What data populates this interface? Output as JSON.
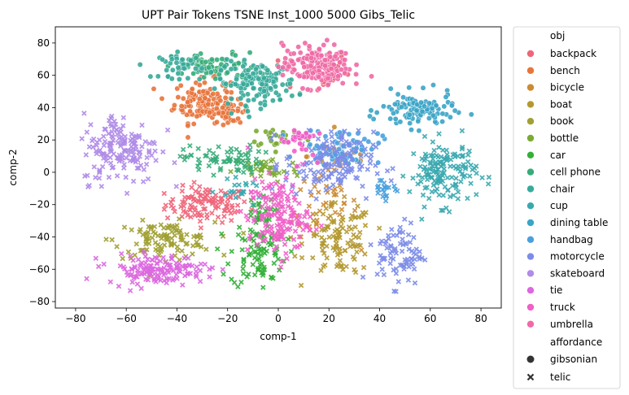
{
  "chart_data": {
    "type": "scatter",
    "title": "UPT Pair Tokens TSNE Inst_1000 5000 Gibs_Telic",
    "xlabel": "comp-1",
    "ylabel": "comp-2",
    "xlim": [
      -88,
      88
    ],
    "ylim": [
      -84,
      90
    ],
    "xticks": [
      "−80",
      "−60",
      "−40",
      "−20",
      "0",
      "20",
      "40",
      "60",
      "80"
    ],
    "xtick_values": [
      -80,
      -60,
      -40,
      -20,
      0,
      20,
      40,
      60,
      80
    ],
    "yticks": [
      "−80",
      "−60",
      "−40",
      "−20",
      "0",
      "20",
      "40",
      "60",
      "80"
    ],
    "ytick_values": [
      -80,
      -60,
      -40,
      -20,
      0,
      20,
      40,
      60,
      80
    ],
    "grid": false,
    "legend_position": "outside-right",
    "legend": {
      "hue_title": "obj",
      "style_title": "affordance",
      "styles": [
        {
          "name": "gibsonian",
          "marker": "circle"
        },
        {
          "name": "telic",
          "marker": "x"
        }
      ]
    },
    "series": [
      {
        "name": "backpack",
        "color": "#f0657a",
        "clusters": [
          {
            "cx": -28,
            "cy": -20,
            "rx": 15,
            "ry": 10,
            "n": 110,
            "marker": "x"
          },
          {
            "cx": 15,
            "cy": 62,
            "rx": 12,
            "ry": 12,
            "n": 30,
            "marker": "circle"
          }
        ]
      },
      {
        "name": "bench",
        "color": "#e8743b",
        "clusters": [
          {
            "cx": -30,
            "cy": 44,
            "rx": 10,
            "ry": 12,
            "n": 130,
            "marker": "circle"
          },
          {
            "cx": -20,
            "cy": 38,
            "rx": 8,
            "ry": 6,
            "n": 40,
            "marker": "circle"
          }
        ]
      },
      {
        "name": "bicycle",
        "color": "#cc8b32",
        "clusters": [
          {
            "cx": 18,
            "cy": -20,
            "rx": 12,
            "ry": 20,
            "n": 40,
            "marker": "x"
          },
          {
            "cx": 25,
            "cy": 10,
            "rx": 12,
            "ry": 10,
            "n": 25,
            "marker": "circle"
          }
        ]
      },
      {
        "name": "boat",
        "color": "#b4992f",
        "clusters": [
          {
            "cx": 24,
            "cy": -42,
            "rx": 12,
            "ry": 20,
            "n": 110,
            "marker": "x"
          }
        ]
      },
      {
        "name": "book",
        "color": "#a0a033",
        "clusters": [
          {
            "cx": -45,
            "cy": -42,
            "rx": 18,
            "ry": 10,
            "n": 110,
            "marker": "x"
          }
        ]
      },
      {
        "name": "bottle",
        "color": "#7bab32",
        "clusters": [
          {
            "cx": -5,
            "cy": 2,
            "rx": 12,
            "ry": 8,
            "n": 40,
            "marker": "x"
          },
          {
            "cx": 0,
            "cy": 22,
            "rx": 10,
            "ry": 6,
            "n": 25,
            "marker": "circle"
          }
        ]
      },
      {
        "name": "car",
        "color": "#33b038",
        "clusters": [
          {
            "cx": -8,
            "cy": -50,
            "rx": 10,
            "ry": 20,
            "n": 90,
            "marker": "x"
          },
          {
            "cx": -8,
            "cy": -25,
            "rx": 6,
            "ry": 8,
            "n": 25,
            "marker": "x"
          }
        ]
      },
      {
        "name": "cell phone",
        "color": "#36ad79",
        "clusters": [
          {
            "cx": -22,
            "cy": 8,
            "rx": 14,
            "ry": 8,
            "n": 70,
            "marker": "x"
          },
          {
            "cx": -25,
            "cy": 65,
            "rx": 15,
            "ry": 8,
            "n": 80,
            "marker": "circle"
          }
        ]
      },
      {
        "name": "chair",
        "color": "#37aa9a",
        "clusters": [
          {
            "cx": -8,
            "cy": 55,
            "rx": 14,
            "ry": 12,
            "n": 140,
            "marker": "circle"
          },
          {
            "cx": -38,
            "cy": 66,
            "rx": 8,
            "ry": 7,
            "n": 40,
            "marker": "circle"
          }
        ]
      },
      {
        "name": "cup",
        "color": "#39a9b0",
        "clusters": [
          {
            "cx": 65,
            "cy": 0,
            "rx": 12,
            "ry": 18,
            "n": 150,
            "marker": "x"
          },
          {
            "cx": -15,
            "cy": -12,
            "rx": 8,
            "ry": 6,
            "n": 20,
            "marker": "x"
          }
        ]
      },
      {
        "name": "dining table",
        "color": "#3aa5c7",
        "clusters": [
          {
            "cx": 55,
            "cy": 38,
            "rx": 13,
            "ry": 10,
            "n": 110,
            "marker": "circle"
          }
        ]
      },
      {
        "name": "handbag",
        "color": "#4aa0de",
        "clusters": [
          {
            "cx": 25,
            "cy": 16,
            "rx": 14,
            "ry": 10,
            "n": 70,
            "marker": "circle"
          },
          {
            "cx": 42,
            "cy": -10,
            "rx": 6,
            "ry": 6,
            "n": 20,
            "marker": "x"
          }
        ]
      },
      {
        "name": "motorcycle",
        "color": "#7d8ce8",
        "clusters": [
          {
            "cx": 20,
            "cy": 5,
            "rx": 16,
            "ry": 18,
            "n": 150,
            "marker": "x"
          },
          {
            "cx": 48,
            "cy": -50,
            "rx": 8,
            "ry": 18,
            "n": 80,
            "marker": "x"
          }
        ]
      },
      {
        "name": "skateboard",
        "color": "#b08be8",
        "clusters": [
          {
            "cx": -62,
            "cy": 15,
            "rx": 14,
            "ry": 20,
            "n": 160,
            "marker": "x"
          }
        ]
      },
      {
        "name": "tie",
        "color": "#dc68e0",
        "clusters": [
          {
            "cx": -48,
            "cy": -60,
            "rx": 18,
            "ry": 8,
            "n": 140,
            "marker": "x"
          }
        ]
      },
      {
        "name": "truck",
        "color": "#f060c8",
        "clusters": [
          {
            "cx": 0,
            "cy": -28,
            "rx": 11,
            "ry": 22,
            "n": 160,
            "marker": "x"
          },
          {
            "cx": 8,
            "cy": 20,
            "rx": 6,
            "ry": 10,
            "n": 30,
            "marker": "circle"
          }
        ]
      },
      {
        "name": "umbrella",
        "color": "#f06aa6",
        "clusters": [
          {
            "cx": 15,
            "cy": 66,
            "rx": 12,
            "ry": 12,
            "n": 170,
            "marker": "circle"
          }
        ]
      }
    ]
  }
}
